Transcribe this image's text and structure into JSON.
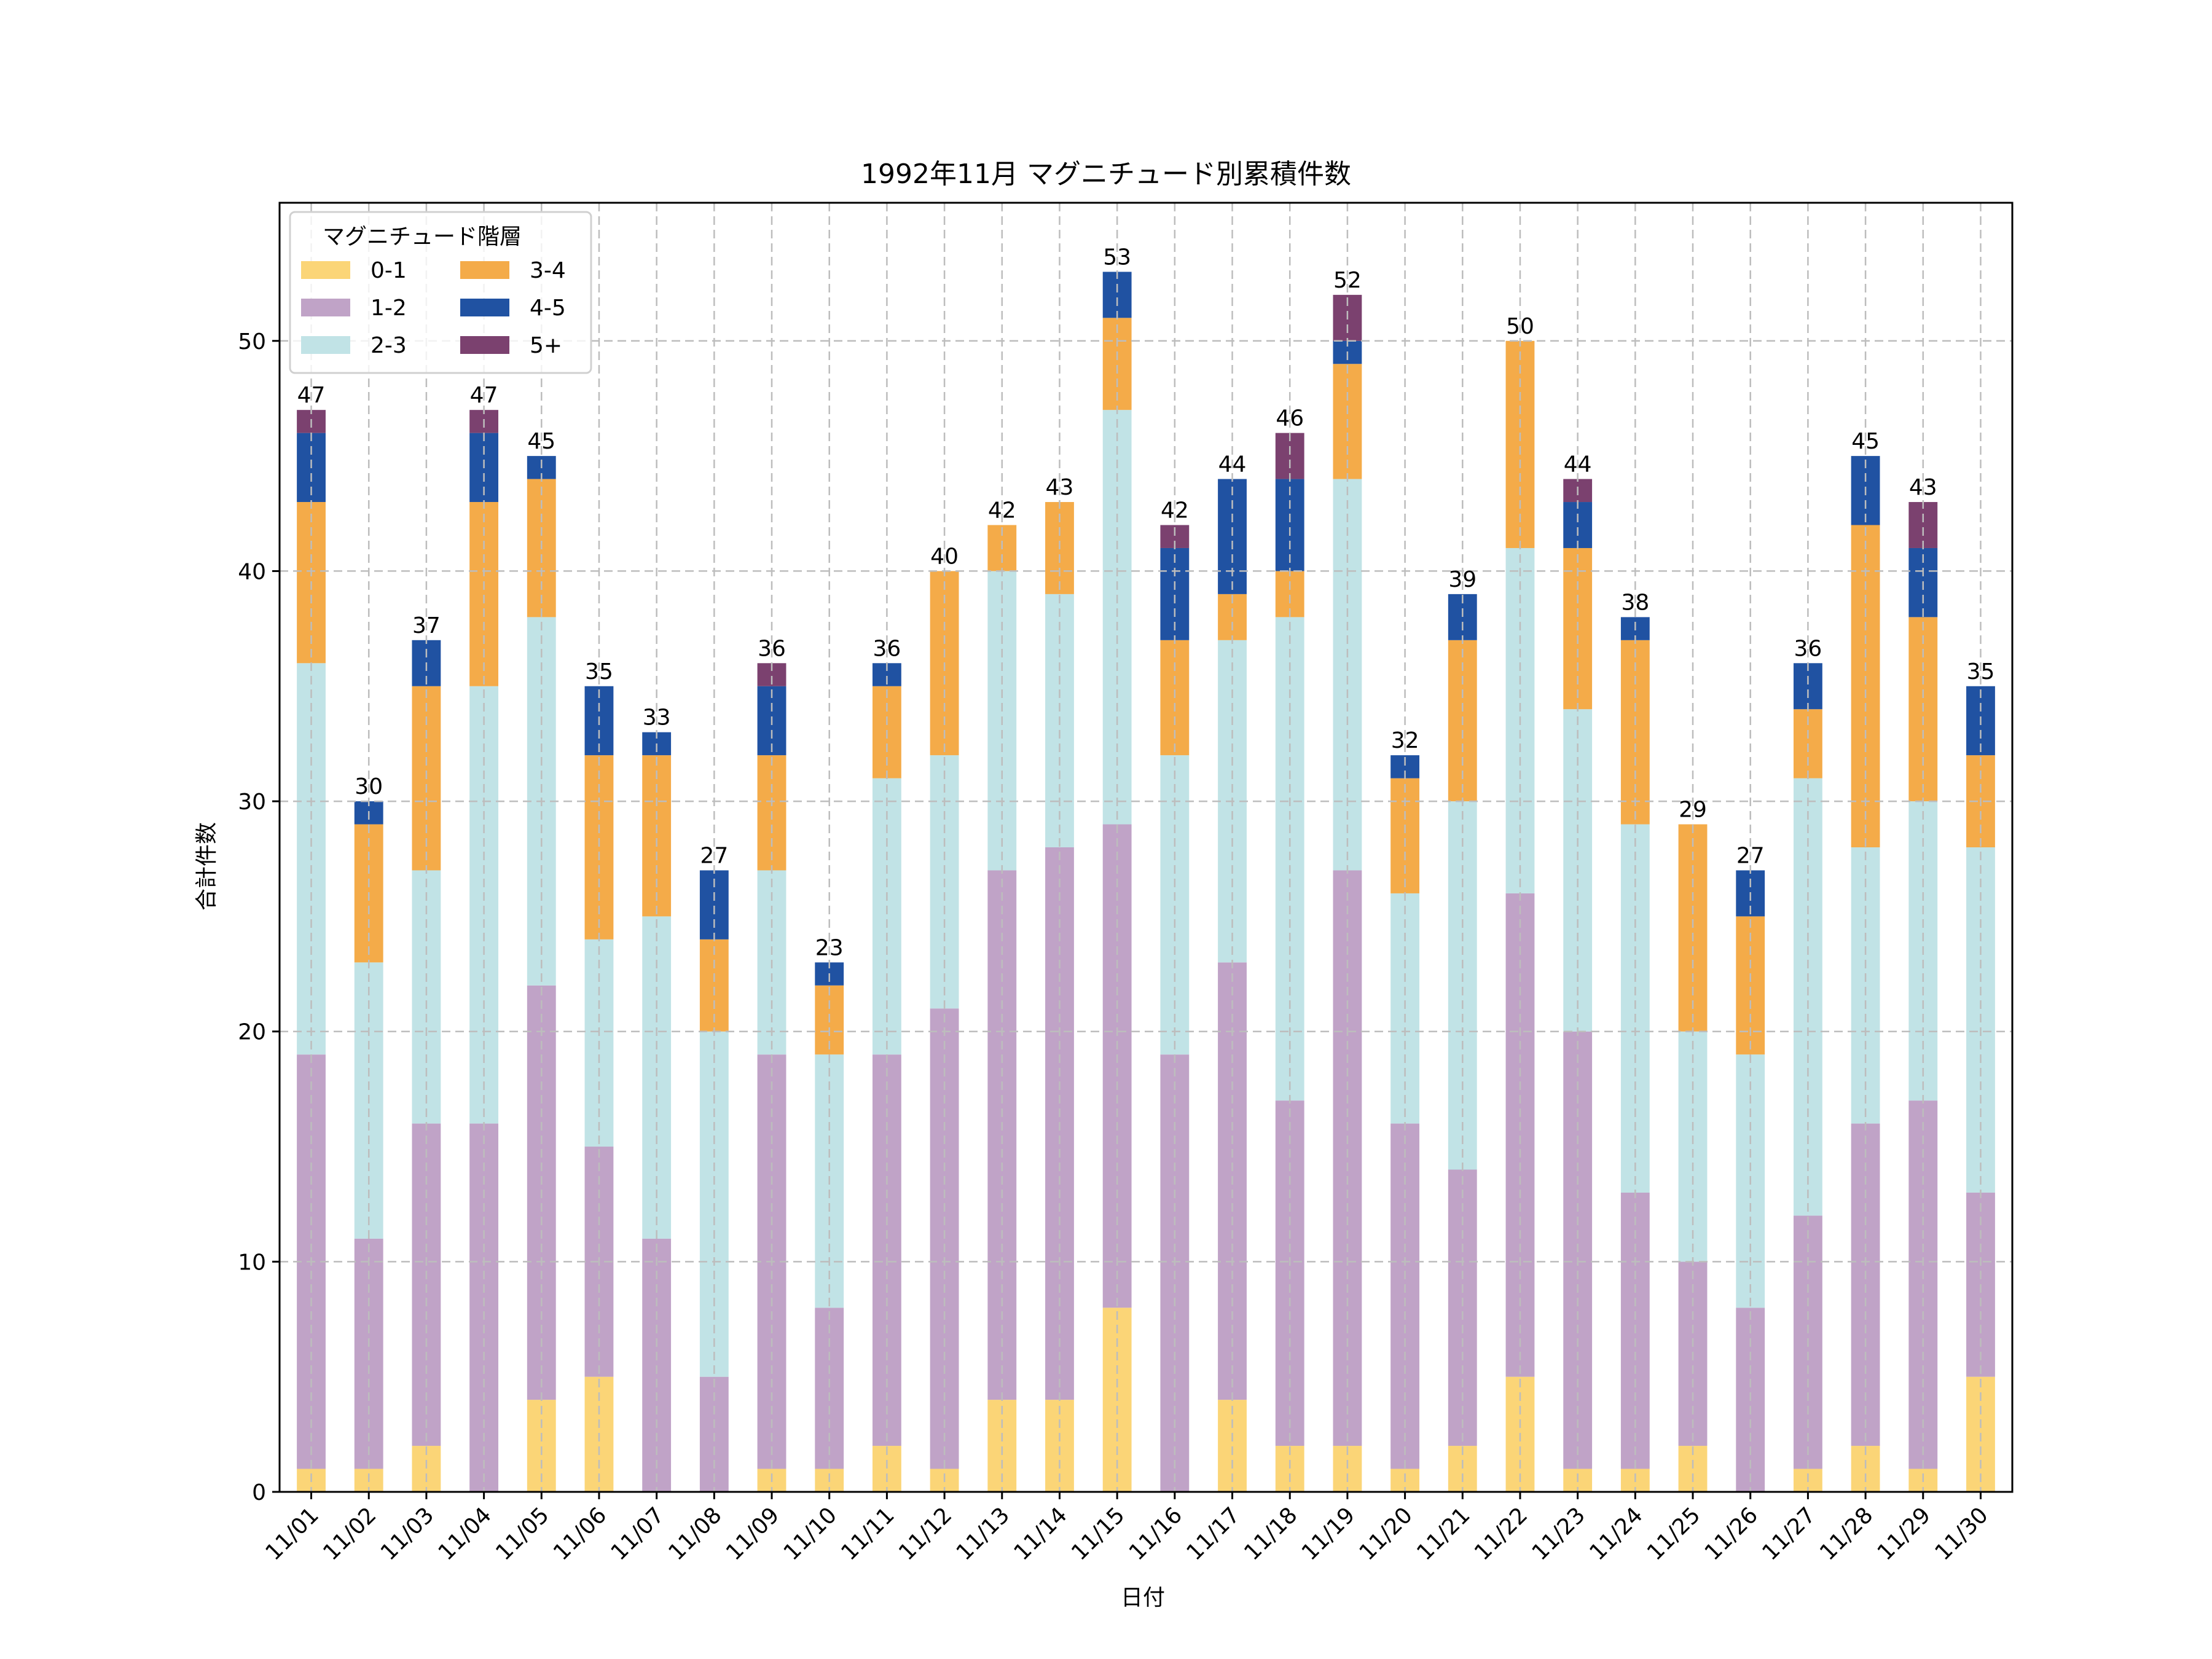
{
  "chart_data": {
    "type": "bar",
    "stacked": true,
    "title": "1992年11月 マグニチュード別累積件数",
    "xlabel": "日付",
    "ylabel": "合計件数",
    "ylim": [
      0,
      56
    ],
    "yticks": [
      0,
      10,
      20,
      30,
      40,
      50
    ],
    "grid": true,
    "legend": {
      "title": "マグニチュード階層",
      "placement": "top-left",
      "columns": 2
    },
    "categories": [
      "11/01",
      "11/02",
      "11/03",
      "11/04",
      "11/05",
      "11/06",
      "11/07",
      "11/08",
      "11/09",
      "11/10",
      "11/11",
      "11/12",
      "11/13",
      "11/14",
      "11/15",
      "11/16",
      "11/17",
      "11/18",
      "11/19",
      "11/20",
      "11/21",
      "11/22",
      "11/23",
      "11/24",
      "11/25",
      "11/26",
      "11/27",
      "11/28",
      "11/29",
      "11/30"
    ],
    "series": [
      {
        "name": "0-1",
        "color": "#fbd577",
        "values": [
          1,
          1,
          2,
          0,
          4,
          5,
          0,
          0,
          1,
          1,
          2,
          1,
          4,
          4,
          8,
          0,
          4,
          2,
          2,
          1,
          2,
          5,
          1,
          1,
          2,
          0,
          1,
          2,
          1,
          5
        ]
      },
      {
        "name": "1-2",
        "color": "#c0a3c7",
        "values": [
          18,
          10,
          14,
          16,
          18,
          10,
          11,
          5,
          18,
          7,
          17,
          20,
          23,
          24,
          21,
          19,
          19,
          15,
          25,
          15,
          12,
          21,
          19,
          12,
          8,
          8,
          11,
          14,
          16,
          8
        ]
      },
      {
        "name": "2-3",
        "color": "#c1e3e6",
        "values": [
          17,
          12,
          11,
          19,
          16,
          9,
          14,
          15,
          8,
          11,
          12,
          11,
          13,
          11,
          18,
          13,
          14,
          21,
          17,
          10,
          16,
          15,
          14,
          16,
          10,
          11,
          19,
          12,
          13,
          15
        ]
      },
      {
        "name": "3-4",
        "color": "#f4ab49",
        "values": [
          7,
          6,
          8,
          8,
          6,
          8,
          7,
          4,
          5,
          3,
          4,
          8,
          2,
          4,
          4,
          5,
          2,
          2,
          5,
          5,
          7,
          9,
          7,
          8,
          9,
          6,
          3,
          14,
          8,
          4
        ]
      },
      {
        "name": "4-5",
        "color": "#2052a2",
        "values": [
          3,
          1,
          2,
          3,
          1,
          3,
          1,
          3,
          3,
          1,
          1,
          0,
          0,
          0,
          2,
          4,
          5,
          4,
          1,
          1,
          2,
          0,
          2,
          1,
          0,
          2,
          2,
          3,
          3,
          3
        ]
      },
      {
        "name": "5+",
        "color": "#7b416f",
        "values": [
          1,
          0,
          0,
          1,
          0,
          0,
          0,
          0,
          1,
          0,
          0,
          0,
          0,
          0,
          0,
          1,
          0,
          2,
          2,
          0,
          0,
          0,
          1,
          0,
          0,
          0,
          0,
          0,
          2,
          0
        ]
      }
    ],
    "totals": [
      47,
      30,
      37,
      47,
      45,
      35,
      33,
      27,
      36,
      23,
      36,
      40,
      42,
      43,
      53,
      42,
      44,
      46,
      52,
      32,
      39,
      50,
      44,
      38,
      29,
      27,
      36,
      45,
      43,
      35
    ]
  }
}
